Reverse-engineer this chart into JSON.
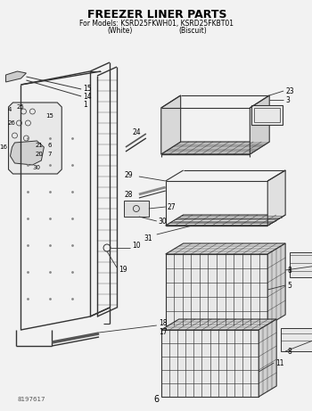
{
  "title": "FREEZER LINER PARTS",
  "subtitle1": "For Models: KSRD25FKWH01, KSRD25FKBT01",
  "subtitle2_white": "(White)",
  "subtitle2_biscuit": "(Biscuit)",
  "page_number": "6",
  "part_number": "8197617",
  "bg": "#f0f0f0",
  "lc": "#333333",
  "tc": "#000000",
  "gray": "#888888"
}
